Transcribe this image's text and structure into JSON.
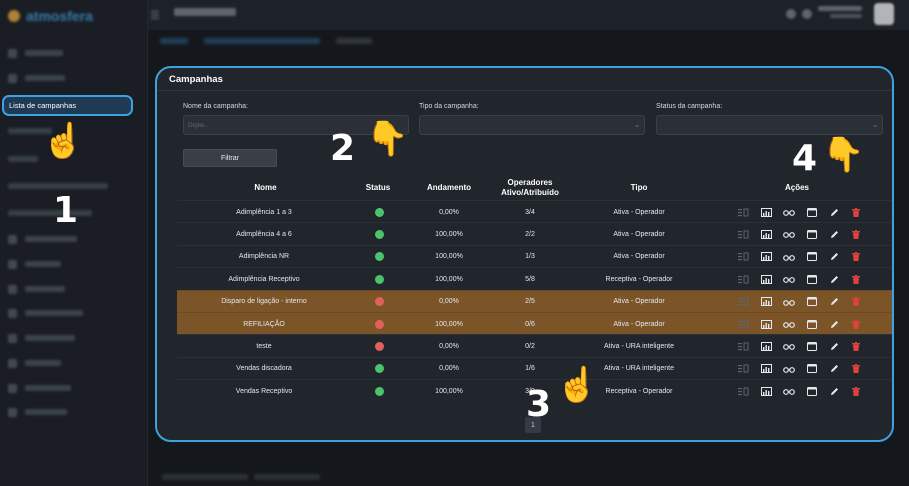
{
  "app": {
    "brand_name": "atmosfera"
  },
  "sidebar": {
    "active_item": "Lista de campanhas"
  },
  "card": {
    "title": "Campanhas",
    "filters": {
      "name_label": "Nome da campanha:",
      "name_placeholder": "Digite...",
      "type_label": "Tipo da campanha:",
      "status_label": "Status da campanha:",
      "submit_label": "Filtrar"
    },
    "columns": {
      "name": "Nome",
      "status": "Status",
      "progress": "Andamento",
      "operators_line1": "Operadores",
      "operators_line2": "Ativo/Atribuído",
      "type": "Tipo",
      "actions": "Ações"
    },
    "rows": [
      {
        "name": "Adimplência 1 a 3",
        "status": "green",
        "progress": "0,00%",
        "operators": "3/4",
        "type": "Ativa - Operador",
        "highlighted": false
      },
      {
        "name": "Adimplência 4 a 6",
        "status": "green",
        "progress": "100,00%",
        "operators": "2/2",
        "type": "Ativa - Operador",
        "highlighted": false
      },
      {
        "name": "Adimplência NR",
        "status": "green",
        "progress": "100,00%",
        "operators": "1/3",
        "type": "Ativa - Operador",
        "highlighted": false
      },
      {
        "name": "Adimplência Receptivo",
        "status": "green",
        "progress": "100,00%",
        "operators": "5/8",
        "type": "Receptiva - Operador",
        "highlighted": false
      },
      {
        "name": "Disparo de ligação - interno",
        "status": "red",
        "progress": "0,00%",
        "operators": "2/5",
        "type": "Ativa - Operador",
        "highlighted": true
      },
      {
        "name": "REFILIAÇÃO",
        "status": "red",
        "progress": "100,00%",
        "operators": "0/6",
        "type": "Ativa - Operador",
        "highlighted": true
      },
      {
        "name": "teste",
        "status": "red",
        "progress": "0,00%",
        "operators": "0/2",
        "type": "Ativa - URA inteligente",
        "highlighted": false
      },
      {
        "name": "Vendas discadora",
        "status": "green",
        "progress": "0,00%",
        "operators": "1/6",
        "type": "Ativa - URA inteligente",
        "highlighted": false
      },
      {
        "name": "Vendas Receptivo",
        "status": "green",
        "progress": "100,00%",
        "operators": "3/9",
        "type": "Receptiva - Operador",
        "highlighted": false
      }
    ],
    "pagination": {
      "current_page": "1"
    }
  },
  "annotations": [
    "1",
    "2",
    "3",
    "4"
  ],
  "colors": {
    "accent": "#3ea1e0",
    "status_green": "#4cc36a",
    "status_red": "#e0605c",
    "highlight_row": "#7b5428",
    "delete": "#e0413d"
  }
}
